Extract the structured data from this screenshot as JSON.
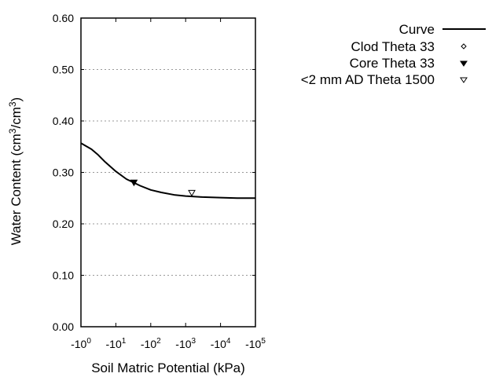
{
  "chart_data": {
    "type": "line",
    "title": "",
    "xlabel": "Soil Matric Potential (kPa)",
    "ylabel": "Water Content (cm3/cm3)",
    "ylabel_parts": {
      "prefix": "Water Content (cm",
      "sup1": "3",
      "mid": "/cm",
      "sup2": "3",
      "suffix": ")"
    },
    "x_scale": "log",
    "x_ticks": [
      {
        "base": "-10",
        "exp": "0"
      },
      {
        "base": "-10",
        "exp": "1"
      },
      {
        "base": "-10",
        "exp": "2"
      },
      {
        "base": "-10",
        "exp": "3"
      },
      {
        "base": "-10",
        "exp": "4"
      },
      {
        "base": "-10",
        "exp": "5"
      }
    ],
    "xlim": [
      -1,
      -100000
    ],
    "y_ticks": [
      "0.00",
      "0.10",
      "0.20",
      "0.30",
      "0.40",
      "0.50",
      "0.60"
    ],
    "ylim": [
      0.0,
      0.6
    ],
    "grid": {
      "y": true,
      "x": false,
      "style": "dotted"
    },
    "legend_position": "top-right outside",
    "series": [
      {
        "name": "Curve",
        "kind": "line",
        "x": [
          -1,
          -2,
          -3,
          -5,
          -10,
          -20,
          -33,
          -50,
          -100,
          -200,
          -500,
          -1000,
          -3000,
          -10000,
          -30000,
          -100000
        ],
        "y": [
          0.357,
          0.345,
          0.335,
          0.32,
          0.302,
          0.287,
          0.28,
          0.274,
          0.266,
          0.261,
          0.256,
          0.254,
          0.252,
          0.251,
          0.25,
          0.25
        ]
      },
      {
        "name": "Clod Theta 33",
        "kind": "marker",
        "marker": "open-diamond",
        "x": [],
        "y": []
      },
      {
        "name": "Core Theta 33",
        "kind": "marker",
        "marker": "filled-triangle-down",
        "x": [
          -33
        ],
        "y": [
          0.279
        ]
      },
      {
        "name": "<2 mm AD Theta 1500",
        "kind": "marker",
        "marker": "open-triangle-down",
        "x": [
          -1500
        ],
        "y": [
          0.259
        ]
      }
    ]
  },
  "legend": {
    "items": [
      {
        "label": "Curve",
        "symbol": "line"
      },
      {
        "label": "Clod Theta 33",
        "symbol": "open-diamond"
      },
      {
        "label": "Core Theta 33",
        "symbol": "filled-triangle-down"
      },
      {
        "label": "<2 mm AD Theta 1500",
        "symbol": "open-triangle-down"
      }
    ]
  },
  "colors": {
    "line": "#000000",
    "grid": "#999999",
    "background": "#ffffff"
  }
}
